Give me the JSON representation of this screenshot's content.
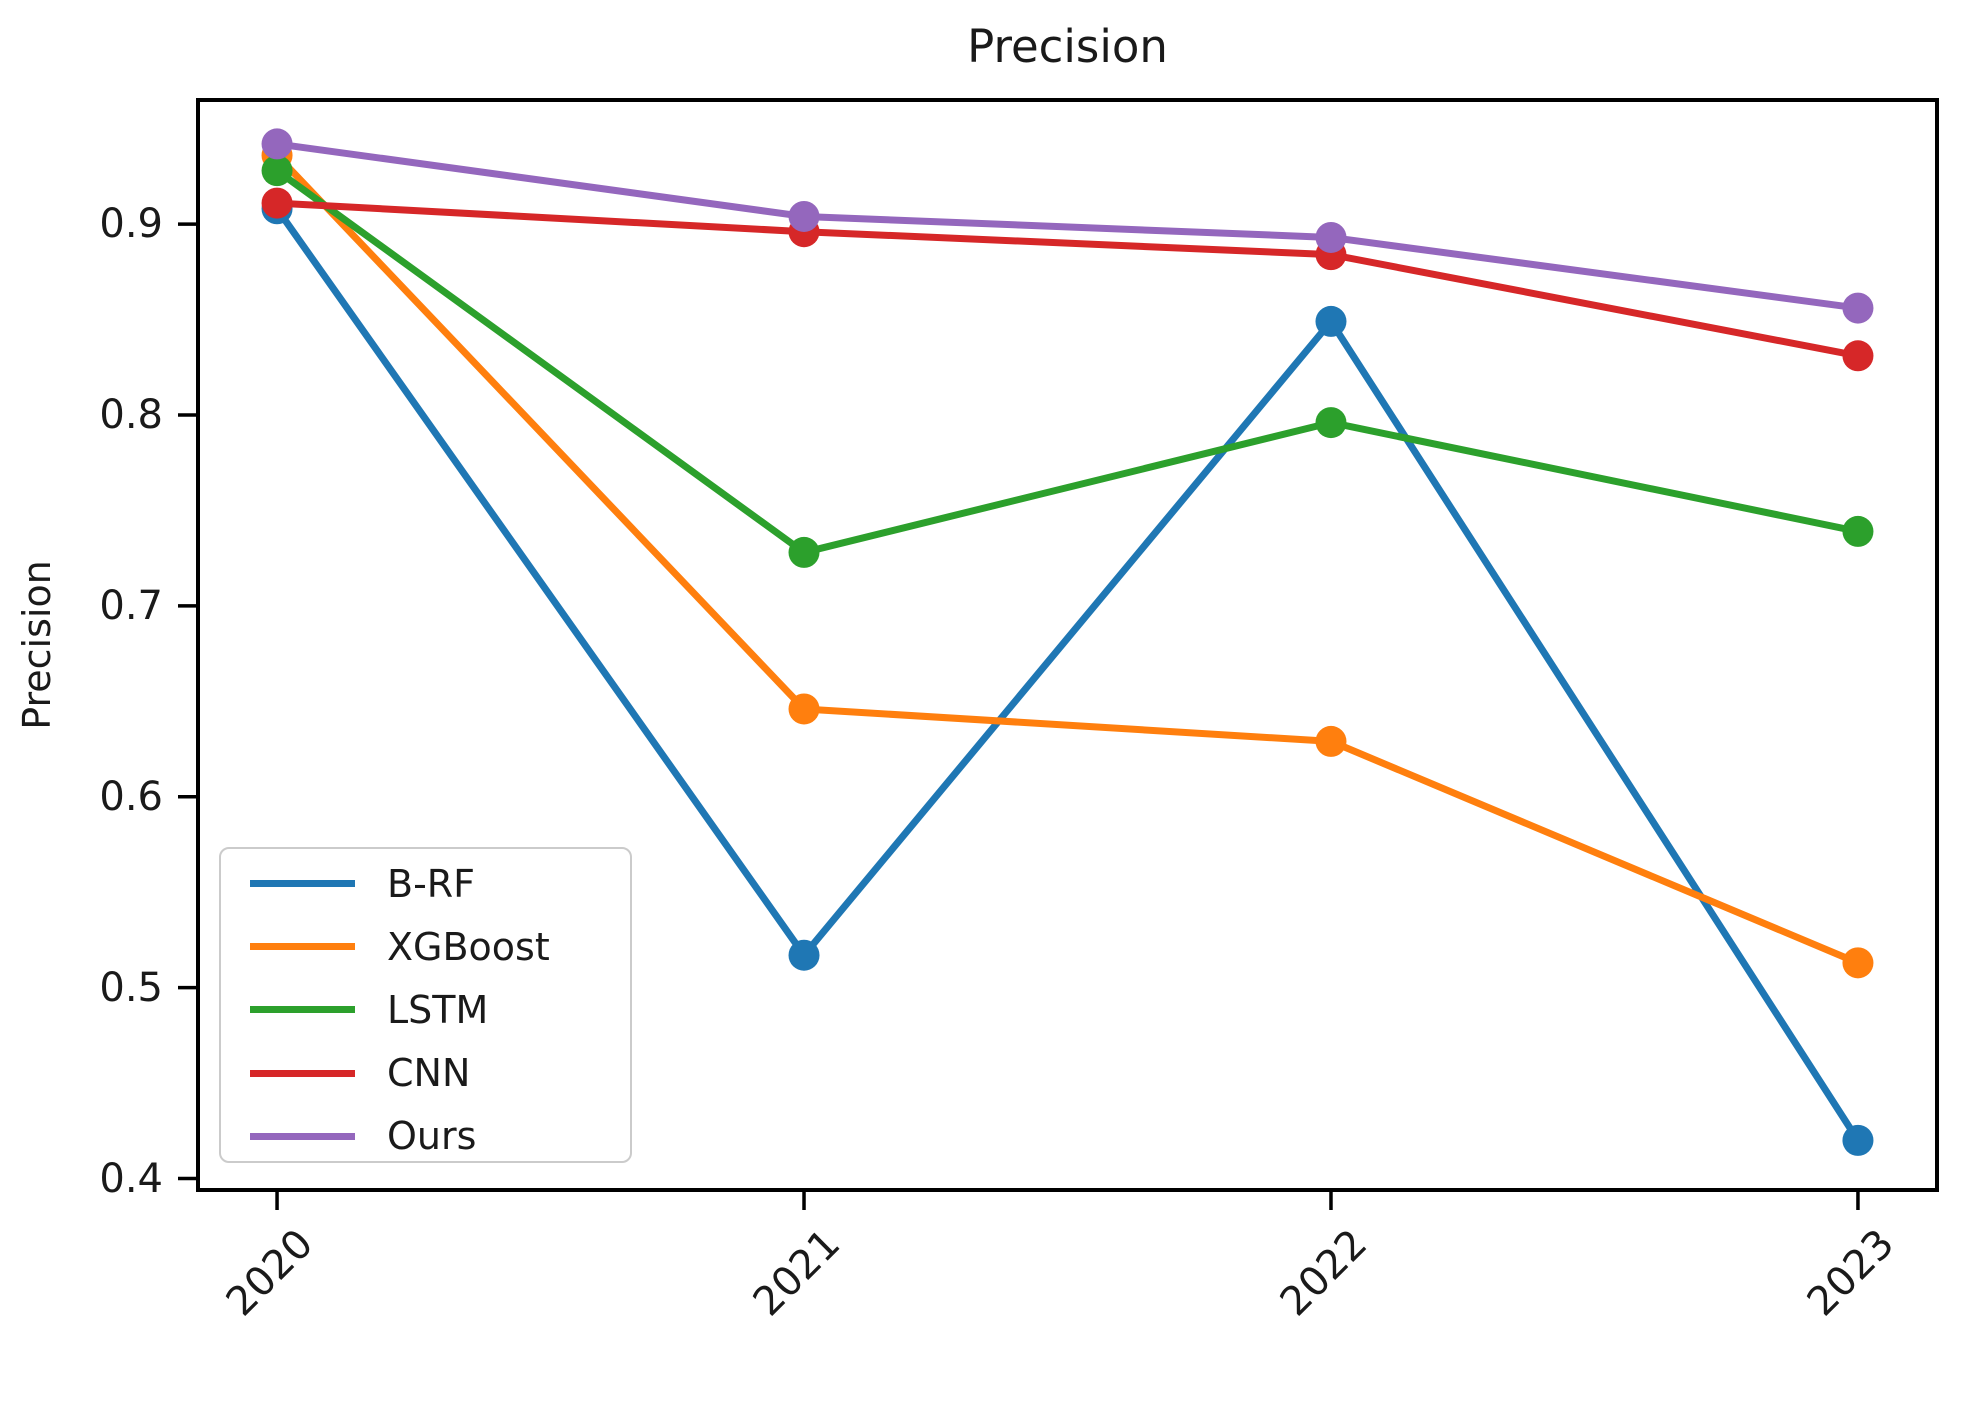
{
  "figure": {
    "background": "#ffffff",
    "text_color": "#1a1a1a",
    "spine_color": "#000000",
    "legend_border_color": "#cbcbcb"
  },
  "chart_data": {
    "type": "line",
    "title": "Precision",
    "xlabel": "",
    "ylabel": "Precision",
    "categories": [
      "2020",
      "2021",
      "2022",
      "2023"
    ],
    "series": [
      {
        "name": "B-RF",
        "color": "#1f77b4",
        "values": [
          0.908,
          0.517,
          0.849,
          0.42
        ]
      },
      {
        "name": "XGBoost",
        "color": "#ff7f0e",
        "values": [
          0.936,
          0.646,
          0.629,
          0.513
        ]
      },
      {
        "name": "LSTM",
        "color": "#2ca02c",
        "values": [
          0.928,
          0.728,
          0.796,
          0.739
        ]
      },
      {
        "name": "CNN",
        "color": "#d62728",
        "values": [
          0.911,
          0.896,
          0.884,
          0.831
        ]
      },
      {
        "name": "Ours",
        "color": "#9467bd",
        "values": [
          0.942,
          0.904,
          0.893,
          0.856
        ]
      }
    ],
    "yticks": [
      0.4,
      0.5,
      0.6,
      0.7,
      0.8,
      0.9
    ],
    "ylim": [
      0.394,
      0.965
    ],
    "x_tick_rotation": 45,
    "grid": false,
    "marker": "circle",
    "legend_position": "lower left",
    "legend_entries": [
      "B-RF",
      "XGBoost",
      "LSTM",
      "CNN",
      "Ours"
    ]
  }
}
